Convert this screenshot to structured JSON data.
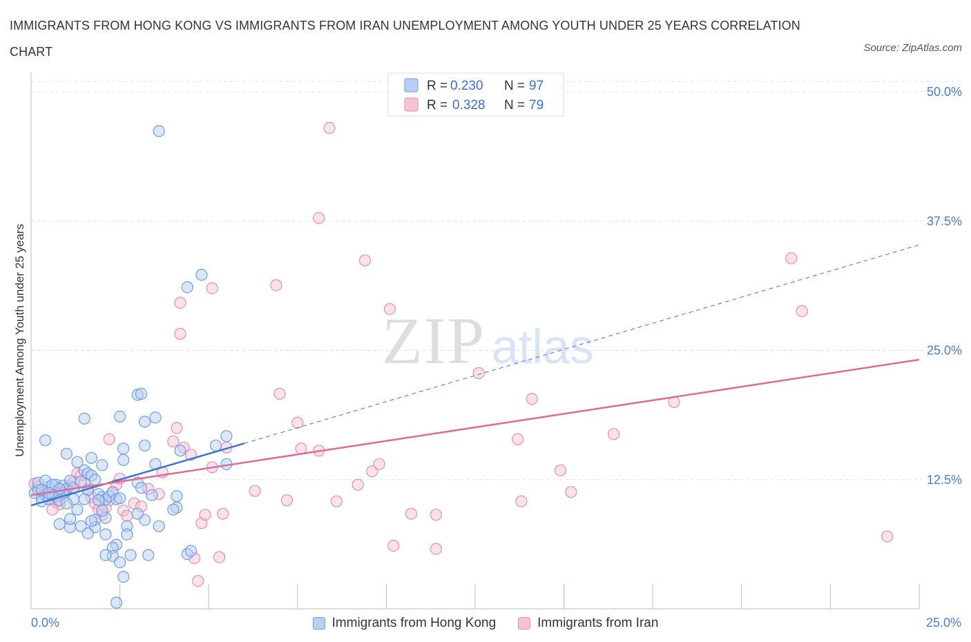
{
  "title": "IMMIGRANTS FROM HONG KONG VS IMMIGRANTS FROM IRAN UNEMPLOYMENT AMONG YOUTH UNDER 25 YEARS CORRELATION CHART",
  "source": "Source: ZipAtlas.com",
  "watermark": {
    "zip": "ZIP",
    "atlas": "atlas"
  },
  "colors": {
    "blue_fill": "#b8d0f3",
    "blue_stroke": "#6f9be0",
    "blue_line": "#3a73d0",
    "pink_fill": "#f7c3d3",
    "pink_stroke": "#e38ead",
    "pink_line": "#e0689a",
    "axis_label": "#4a7ccf",
    "grid": "#e3e3e3"
  },
  "legend": {
    "series1": {
      "r_label": "R = ",
      "r_value": "0.230",
      "n_label": "N = ",
      "n_value": "97"
    },
    "series2": {
      "r_label": "R = ",
      "r_value": "0.328",
      "n_label": "N = ",
      "n_value": "79"
    }
  },
  "chart_data": {
    "type": "scatter",
    "title": "IMMIGRANTS FROM HONG KONG VS IMMIGRANTS FROM IRAN UNEMPLOYMENT AMONG YOUTH UNDER 25 YEARS CORRELATION CHART",
    "xlabel": "",
    "ylabel": "Unemployment Among Youth under 25 years",
    "xlim": [
      0,
      25
    ],
    "ylim": [
      0,
      50
    ],
    "x_tick_labels": [
      "0.0%",
      "25.0%"
    ],
    "y_ticks": [
      {
        "value": 12.5,
        "label": "12.5%"
      },
      {
        "value": 25,
        "label": "25.0%"
      },
      {
        "value": 37.5,
        "label": "37.5%"
      },
      {
        "value": 50,
        "label": "50.0%"
      }
    ],
    "grid": true,
    "legend_position": "top-center",
    "series": [
      {
        "name": "Immigrants from Hong Kong",
        "color": "blue",
        "R": 0.23,
        "N": 97,
        "trend": {
          "x0": 0.0,
          "y0": 10.0,
          "x1": 6.0,
          "y1": 16.0,
          "dashed_to_x": 25.0,
          "dashed_to_y": 35.2
        },
        "points": [
          [
            0.1,
            11.2
          ],
          [
            0.2,
            11.5
          ],
          [
            0.3,
            10.8
          ],
          [
            0.4,
            11.0
          ],
          [
            0.5,
            11.8
          ],
          [
            0.6,
            11.3
          ],
          [
            0.7,
            12.0
          ],
          [
            0.8,
            11.4
          ],
          [
            0.9,
            11.9
          ],
          [
            1.0,
            11.6
          ],
          [
            0.3,
            10.4
          ],
          [
            0.5,
            10.6
          ],
          [
            0.7,
            10.9
          ],
          [
            0.9,
            11.2
          ],
          [
            1.1,
            12.4
          ],
          [
            0.2,
            12.2
          ],
          [
            0.4,
            12.4
          ],
          [
            0.6,
            12.0
          ],
          [
            0.8,
            11.6
          ],
          [
            1.2,
            11.7
          ],
          [
            1.4,
            12.3
          ],
          [
            1.5,
            13.4
          ],
          [
            1.6,
            13.1
          ],
          [
            1.7,
            12.9
          ],
          [
            1.8,
            12.5
          ],
          [
            1.9,
            11.1
          ],
          [
            2.0,
            10.8
          ],
          [
            2.1,
            10.6
          ],
          [
            2.2,
            10.9
          ],
          [
            2.3,
            11.3
          ],
          [
            2.4,
            10.6
          ],
          [
            2.5,
            10.7
          ],
          [
            1.0,
            15.0
          ],
          [
            1.3,
            14.2
          ],
          [
            1.7,
            14.6
          ],
          [
            2.0,
            13.9
          ],
          [
            0.4,
            16.3
          ],
          [
            1.5,
            18.4
          ],
          [
            2.5,
            18.6
          ],
          [
            3.0,
            20.7
          ],
          [
            3.1,
            20.8
          ],
          [
            3.2,
            18.1
          ],
          [
            3.5,
            18.5
          ],
          [
            3.2,
            15.8
          ],
          [
            2.6,
            15.5
          ],
          [
            2.6,
            14.4
          ],
          [
            3.0,
            12.2
          ],
          [
            3.1,
            11.7
          ],
          [
            3.4,
            11.0
          ],
          [
            3.5,
            14.0
          ],
          [
            4.1,
            10.9
          ],
          [
            4.1,
            9.8
          ],
          [
            4.0,
            9.6
          ],
          [
            3.6,
            8.0
          ],
          [
            3.2,
            8.6
          ],
          [
            3.0,
            9.2
          ],
          [
            2.7,
            8.0
          ],
          [
            2.7,
            7.2
          ],
          [
            2.1,
            8.8
          ],
          [
            1.8,
            8.6
          ],
          [
            1.8,
            7.9
          ],
          [
            1.6,
            7.3
          ],
          [
            1.4,
            8.0
          ],
          [
            1.1,
            7.9
          ],
          [
            0.8,
            8.2
          ],
          [
            1.1,
            8.7
          ],
          [
            1.3,
            9.6
          ],
          [
            1.7,
            8.5
          ],
          [
            2.0,
            9.5
          ],
          [
            2.1,
            7.2
          ],
          [
            2.4,
            6.2
          ],
          [
            2.3,
            5.9
          ],
          [
            2.3,
            5.1
          ],
          [
            2.1,
            5.2
          ],
          [
            2.5,
            4.5
          ],
          [
            2.6,
            3.1
          ],
          [
            2.8,
            5.2
          ],
          [
            3.3,
            5.2
          ],
          [
            4.4,
            5.3
          ],
          [
            4.5,
            5.6
          ],
          [
            2.4,
            0.6
          ],
          [
            3.6,
            46.2
          ],
          [
            4.8,
            32.3
          ],
          [
            4.4,
            31.1
          ],
          [
            5.5,
            16.7
          ],
          [
            5.2,
            15.8
          ],
          [
            5.5,
            14.0
          ],
          [
            4.2,
            15.3
          ],
          [
            1.2,
            10.6
          ],
          [
            1.5,
            10.6
          ],
          [
            1.6,
            11.5
          ],
          [
            1.9,
            10.5
          ],
          [
            0.6,
            11.0
          ],
          [
            0.8,
            10.5
          ],
          [
            1.0,
            10.2
          ],
          [
            0.3,
            11.5
          ],
          [
            0.5,
            11.2
          ]
        ]
      },
      {
        "name": "Immigrants from Iran",
        "color": "pink",
        "R": 0.328,
        "N": 79,
        "trend": {
          "x0": 0.0,
          "y0": 11.0,
          "x1": 25.0,
          "y1": 24.1
        },
        "points": [
          [
            0.1,
            12.1
          ],
          [
            0.2,
            11.8
          ],
          [
            0.3,
            11.5
          ],
          [
            0.4,
            11.2
          ],
          [
            0.5,
            10.9
          ],
          [
            0.6,
            10.6
          ],
          [
            0.7,
            10.3
          ],
          [
            0.8,
            10.1
          ],
          [
            0.9,
            10.8
          ],
          [
            1.0,
            11.4
          ],
          [
            1.1,
            11.9
          ],
          [
            1.2,
            12.3
          ],
          [
            1.3,
            13.1
          ],
          [
            1.4,
            12.9
          ],
          [
            1.5,
            12.2
          ],
          [
            1.6,
            11.5
          ],
          [
            1.7,
            10.8
          ],
          [
            1.8,
            10.2
          ],
          [
            1.9,
            9.6
          ],
          [
            2.0,
            9.1
          ],
          [
            2.1,
            9.8
          ],
          [
            2.2,
            10.5
          ],
          [
            2.3,
            11.2
          ],
          [
            2.4,
            12.0
          ],
          [
            2.5,
            12.6
          ],
          [
            2.6,
            9.5
          ],
          [
            2.7,
            9.0
          ],
          [
            2.9,
            10.2
          ],
          [
            3.1,
            9.9
          ],
          [
            3.3,
            11.6
          ],
          [
            3.6,
            11.1
          ],
          [
            3.7,
            13.2
          ],
          [
            4.0,
            16.2
          ],
          [
            4.1,
            17.5
          ],
          [
            4.3,
            15.6
          ],
          [
            4.5,
            14.9
          ],
          [
            4.6,
            4.9
          ],
          [
            4.7,
            2.7
          ],
          [
            4.8,
            8.3
          ],
          [
            4.9,
            9.1
          ],
          [
            5.1,
            31.0
          ],
          [
            5.1,
            13.7
          ],
          [
            5.3,
            5.0
          ],
          [
            5.4,
            9.2
          ],
          [
            5.5,
            15.6
          ],
          [
            4.2,
            29.6
          ],
          [
            4.2,
            26.6
          ],
          [
            6.3,
            11.4
          ],
          [
            6.9,
            31.3
          ],
          [
            7.0,
            20.8
          ],
          [
            7.2,
            10.5
          ],
          [
            7.5,
            18.0
          ],
          [
            7.6,
            15.5
          ],
          [
            8.1,
            15.3
          ],
          [
            8.4,
            46.5
          ],
          [
            8.6,
            10.4
          ],
          [
            9.2,
            12.0
          ],
          [
            9.4,
            33.7
          ],
          [
            9.6,
            13.3
          ],
          [
            9.8,
            14.0
          ],
          [
            10.1,
            29.0
          ],
          [
            10.2,
            6.1
          ],
          [
            10.7,
            9.2
          ],
          [
            11.4,
            5.8
          ],
          [
            11.4,
            9.1
          ],
          [
            12.6,
            22.8
          ],
          [
            13.7,
            16.4
          ],
          [
            13.8,
            10.4
          ],
          [
            14.1,
            20.3
          ],
          [
            14.9,
            13.4
          ],
          [
            15.2,
            11.3
          ],
          [
            16.4,
            16.9
          ],
          [
            18.1,
            20.0
          ],
          [
            21.4,
            33.9
          ],
          [
            21.7,
            28.8
          ],
          [
            24.1,
            7.0
          ],
          [
            2.2,
            16.4
          ],
          [
            8.1,
            37.8
          ],
          [
            0.6,
            9.6
          ]
        ]
      }
    ]
  }
}
